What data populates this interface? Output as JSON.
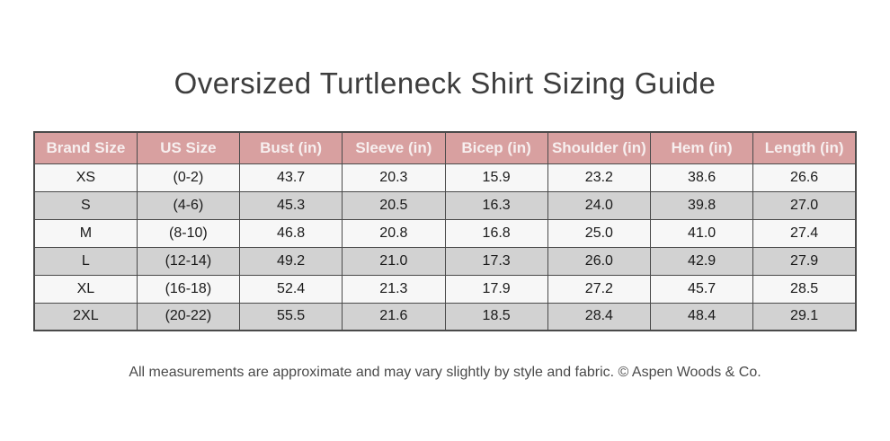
{
  "header": {
    "title": "Oversized Turtleneck Shirt Sizing Guide"
  },
  "footer": {
    "note": "All measurements are approximate and may vary slightly by style and fabric. © Aspen Woods & Co."
  },
  "colors": {
    "header_bg": "#D8A0A0",
    "header_text": "#F7EFEF",
    "row_odd_bg": "#F7F7F7",
    "row_even_bg": "#D2D2D2",
    "border": "#4A4A4A",
    "title_text": "#3D3D3D",
    "footer_text": "#4A4A4A"
  },
  "chart_data": {
    "type": "table",
    "title": "Oversized Turtleneck Shirt Sizing Guide",
    "columns": [
      "Brand Size",
      "US Size",
      "Bust (in)",
      "Sleeve (in)",
      "Bicep (in)",
      "Shoulder (in)",
      "Hem (in)",
      "Length (in)"
    ],
    "rows": [
      [
        "XS",
        "(0-2)",
        "43.7",
        "20.3",
        "15.9",
        "23.2",
        "38.6",
        "26.6"
      ],
      [
        "S",
        "(4-6)",
        "45.3",
        "20.5",
        "16.3",
        "24.0",
        "39.8",
        "27.0"
      ],
      [
        "M",
        "(8-10)",
        "46.8",
        "20.8",
        "16.8",
        "25.0",
        "41.0",
        "27.4"
      ],
      [
        "L",
        "(12-14)",
        "49.2",
        "21.0",
        "17.3",
        "26.0",
        "42.9",
        "27.9"
      ],
      [
        "XL",
        "(16-18)",
        "52.4",
        "21.3",
        "17.9",
        "27.2",
        "45.7",
        "28.5"
      ],
      [
        "2XL",
        "(20-22)",
        "55.5",
        "21.6",
        "18.5",
        "28.4",
        "48.4",
        "29.1"
      ]
    ]
  }
}
